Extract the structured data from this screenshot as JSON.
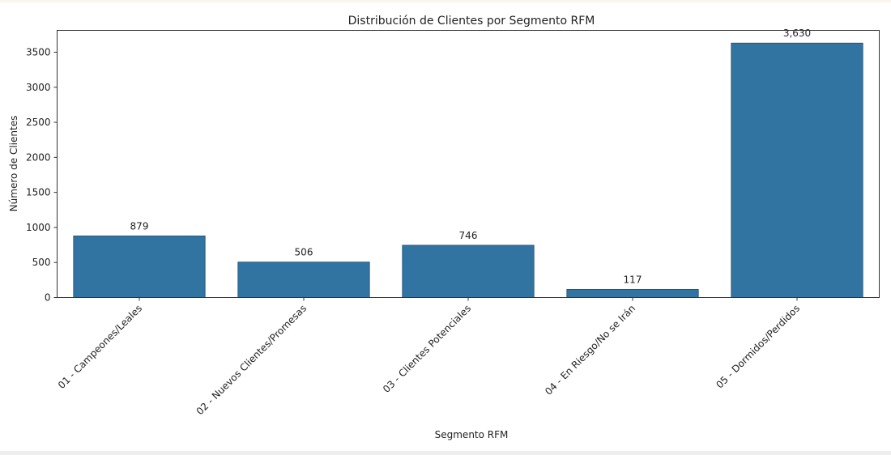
{
  "chart_data": {
    "type": "bar",
    "title": "Distribución de Clientes por Segmento RFM",
    "xlabel": "Segmento RFM",
    "ylabel": "Número de Clientes",
    "categories": [
      "01 - Campeones/Leales",
      "02 - Nuevos Clientes/Promesas",
      "03 - Clientes Potenciales",
      "04 - En Riesgo/No se Irán",
      "05 - Dormidos/Perdidos"
    ],
    "values": [
      879,
      506,
      746,
      117,
      3630
    ],
    "data_labels": [
      "879",
      "506",
      "746",
      "117",
      "3,630"
    ],
    "ylim": [
      0,
      3811.5
    ],
    "yticks": [
      0,
      500,
      1000,
      1500,
      2000,
      2500,
      3000,
      3500
    ],
    "grid": false,
    "bar_color": "#3274a1"
  }
}
